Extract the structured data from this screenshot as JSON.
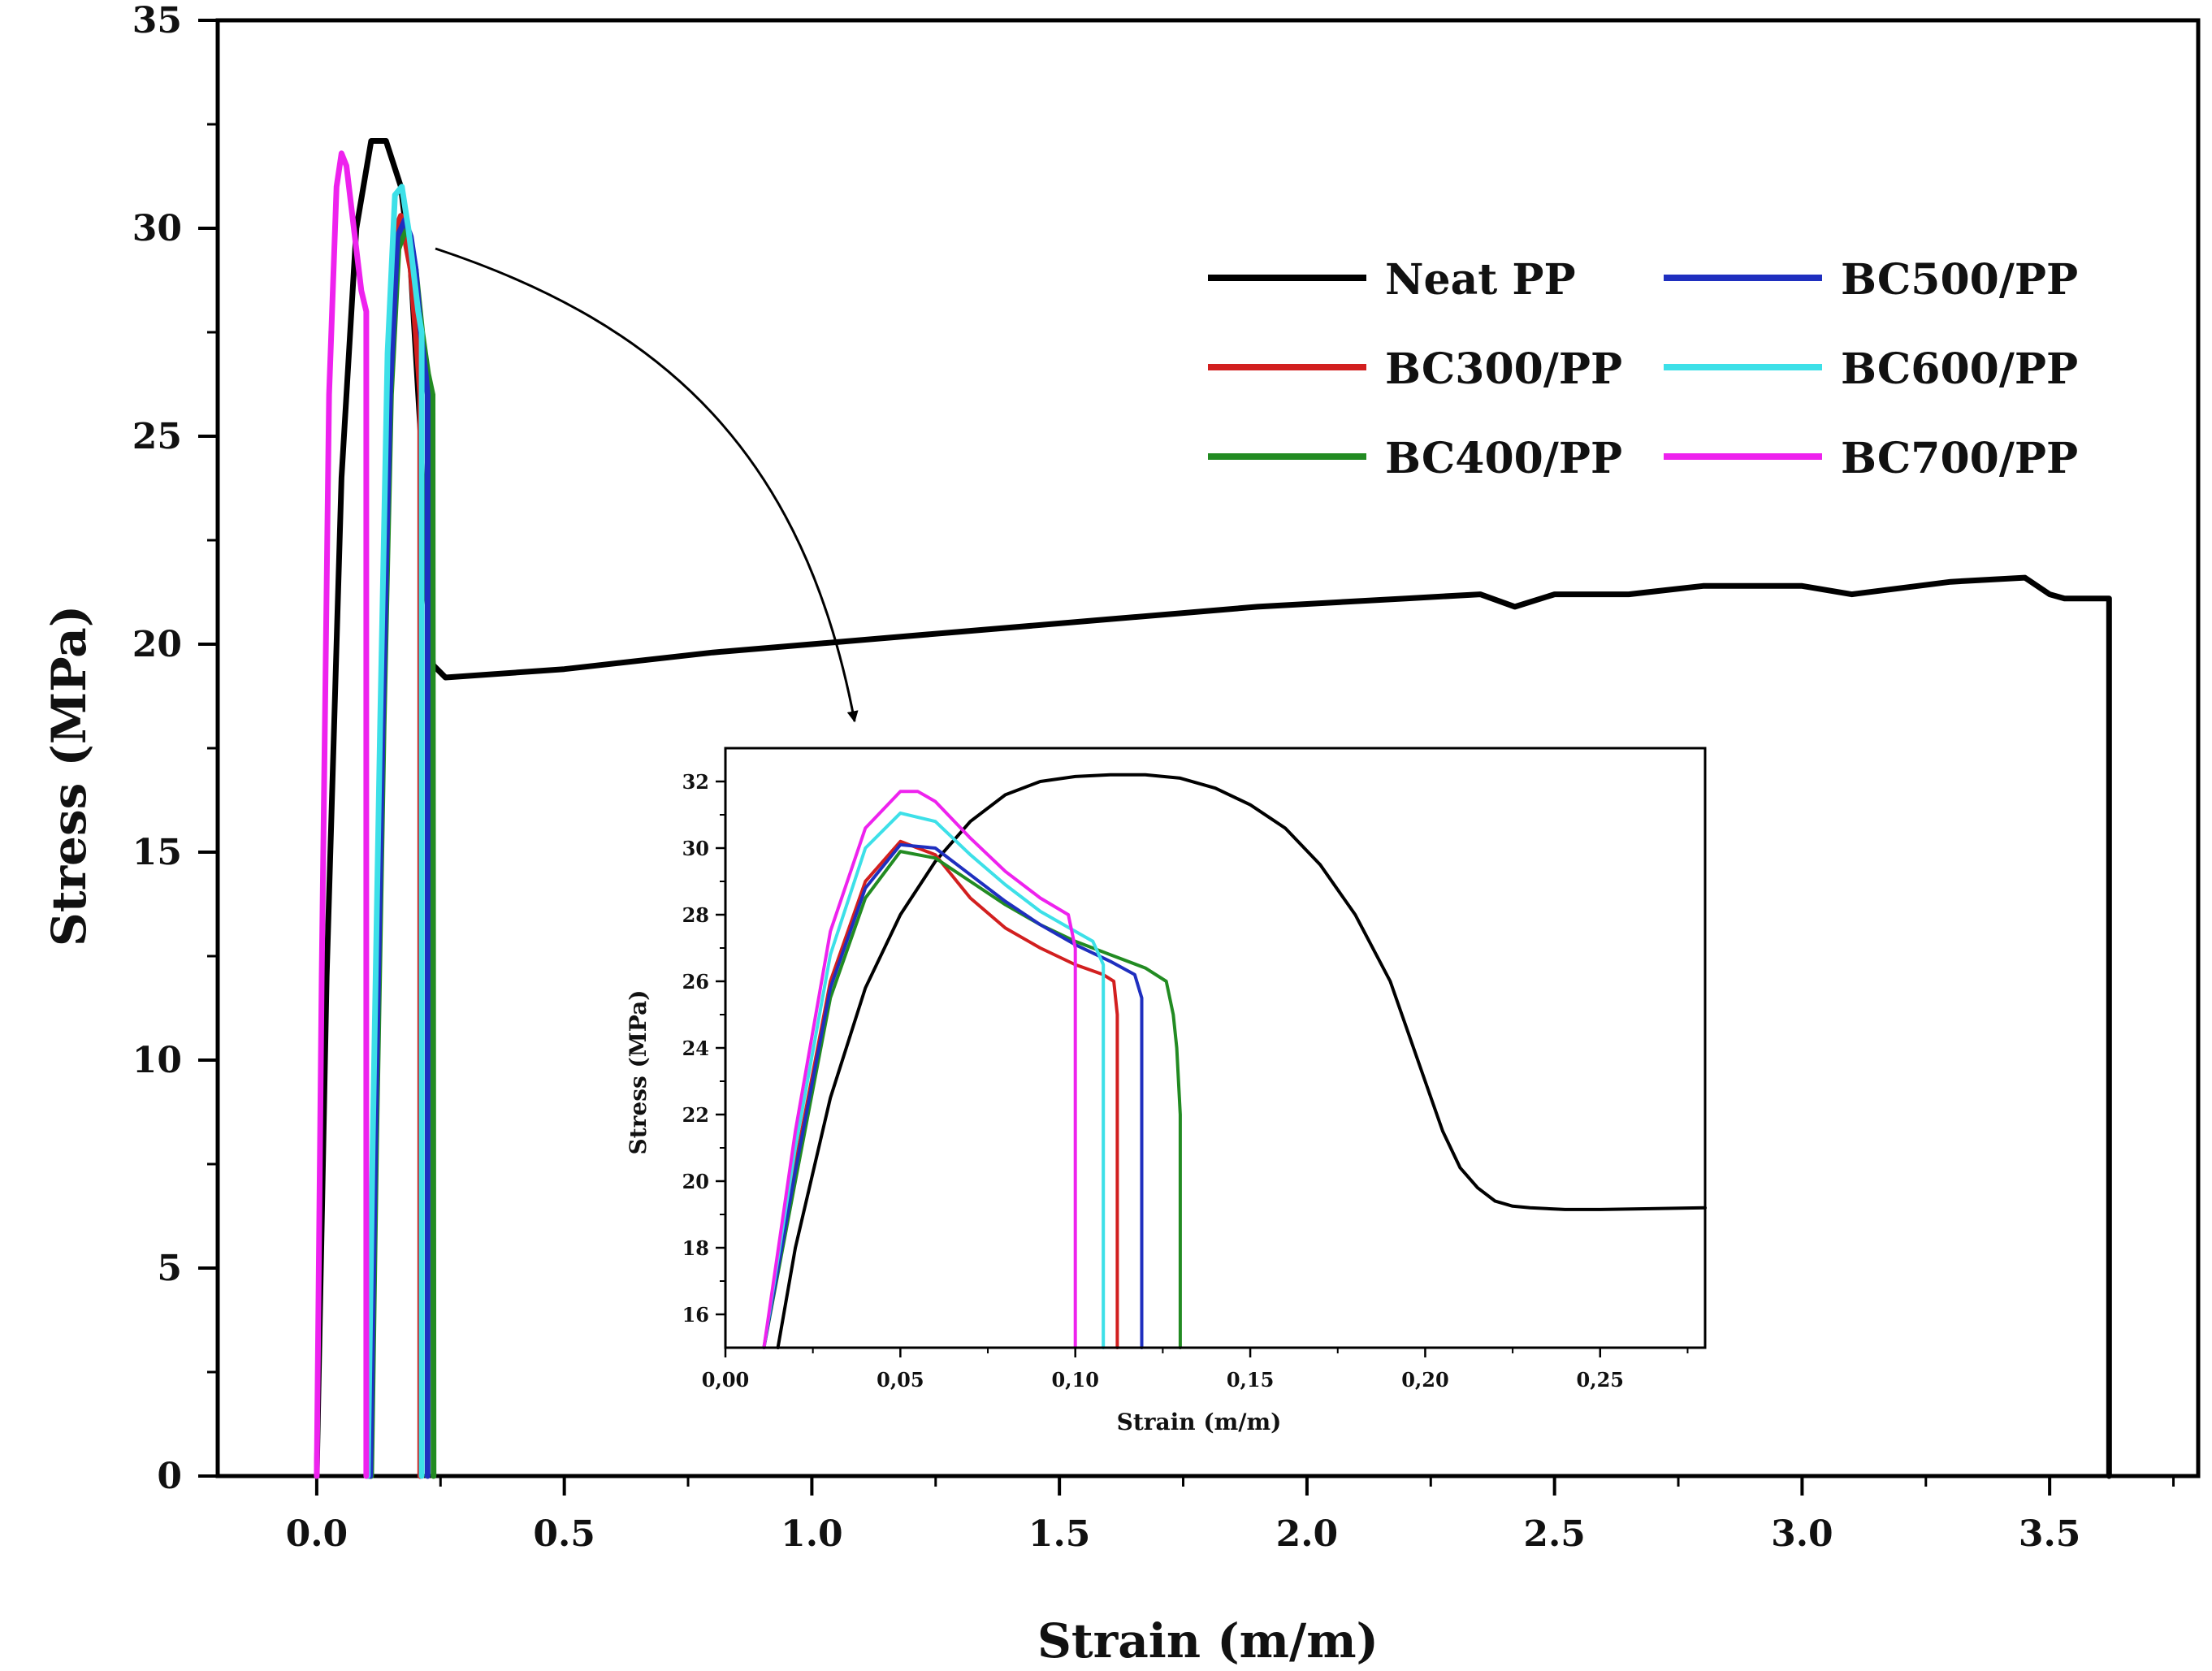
{
  "chart_data": [
    {
      "id": "main",
      "type": "line",
      "title": "",
      "xlabel": "Strain (m/m)",
      "ylabel": "Stress (MPa)",
      "xlim": [
        -0.2,
        3.8
      ],
      "ylim": [
        0,
        35
      ],
      "xticks": [
        "0.0",
        "0.5",
        "1.0",
        "1.5",
        "2.0",
        "2.5",
        "3.0",
        "3.5"
      ],
      "xtick_values": [
        0,
        0.5,
        1.0,
        1.5,
        2.0,
        2.5,
        3.0,
        3.5
      ],
      "yticks": [
        "0",
        "5",
        "10",
        "15",
        "20",
        "25",
        "30",
        "35"
      ],
      "ytick_values": [
        0,
        5,
        10,
        15,
        20,
        25,
        30,
        35
      ],
      "legend_position": "top-right",
      "series": [
        {
          "name": "Neat PP",
          "color": "#000000",
          "x": [
            0,
            0.02,
            0.05,
            0.08,
            0.11,
            0.14,
            0.17,
            0.19,
            0.21,
            0.22,
            0.235,
            0.26,
            0.5,
            0.8,
            1.0,
            1.3,
            1.6,
            1.9,
            2.2,
            2.35,
            2.42,
            2.5,
            2.65,
            2.8,
            3.0,
            3.1,
            3.3,
            3.45,
            3.5,
            3.53,
            3.6,
            3.62,
            3.62
          ],
          "y": [
            0,
            12,
            24,
            30,
            32.1,
            32.1,
            31,
            29,
            25,
            21.5,
            19.5,
            19.2,
            19.4,
            19.8,
            20.0,
            20.3,
            20.6,
            20.9,
            21.1,
            21.2,
            20.9,
            21.2,
            21.2,
            21.4,
            21.4,
            21.2,
            21.5,
            21.6,
            21.2,
            21.1,
            21.1,
            21.1,
            0
          ]
        },
        {
          "name": "BC300/PP",
          "color": "#d21f1f",
          "x": [
            0.105,
            0.115,
            0.13,
            0.145,
            0.16,
            0.17,
            0.182,
            0.19,
            0.2,
            0.209,
            0.209
          ],
          "y": [
            0,
            8,
            18,
            26,
            30,
            30.3,
            29.5,
            29,
            27.5,
            26,
            0
          ]
        },
        {
          "name": "BC400/PP",
          "color": "#228b22",
          "x": [
            0.11,
            0.12,
            0.135,
            0.15,
            0.165,
            0.18,
            0.19,
            0.2,
            0.213,
            0.225,
            0.234,
            0.236,
            0.236
          ],
          "y": [
            0,
            8,
            18,
            26,
            29.5,
            30,
            29.7,
            29,
            27.5,
            26.5,
            26,
            0,
            0
          ]
        },
        {
          "name": "BC500/PP",
          "color": "#1f2fbf",
          "x": [
            0.108,
            0.118,
            0.133,
            0.148,
            0.163,
            0.178,
            0.19,
            0.2,
            0.21,
            0.22,
            0.224,
            0.224
          ],
          "y": [
            0,
            8,
            18,
            26,
            29.8,
            30.2,
            29.8,
            29,
            27.5,
            26.5,
            26,
            0
          ]
        },
        {
          "name": "BC600/PP",
          "color": "#3de0e8",
          "x": [
            0.103,
            0.113,
            0.128,
            0.143,
            0.158,
            0.172,
            0.185,
            0.195,
            0.205,
            0.212,
            0.212
          ],
          "y": [
            0,
            8,
            18,
            27,
            30.8,
            31,
            30,
            29,
            28,
            27.5,
            0
          ]
        },
        {
          "name": "BC700/PP",
          "color": "#ee22ee",
          "x": [
            0,
            0.01,
            0.025,
            0.04,
            0.05,
            0.06,
            0.075,
            0.09,
            0.1,
            0.1
          ],
          "y": [
            0,
            12,
            26,
            31,
            31.8,
            31.5,
            30,
            28.5,
            28,
            0
          ]
        }
      ]
    },
    {
      "id": "inset",
      "type": "line",
      "title": "",
      "xlabel": "Strain (m/m)",
      "ylabel": "Stress (MPa)",
      "xlim": [
        0,
        0.28
      ],
      "ylim": [
        15,
        33
      ],
      "xticks": [
        "0,00",
        "0,05",
        "0,10",
        "0,15",
        "0,20",
        "0,25"
      ],
      "xtick_values": [
        0,
        0.05,
        0.1,
        0.15,
        0.2,
        0.25
      ],
      "yticks": [
        "16",
        "18",
        "20",
        "22",
        "24",
        "26",
        "28",
        "30",
        "32"
      ],
      "ytick_values": [
        16,
        18,
        20,
        22,
        24,
        26,
        28,
        30,
        32
      ],
      "series": [
        {
          "name": "Neat PP",
          "color": "#000000",
          "x": [
            0.015,
            0.02,
            0.03,
            0.04,
            0.05,
            0.06,
            0.07,
            0.08,
            0.09,
            0.1,
            0.11,
            0.12,
            0.13,
            0.14,
            0.15,
            0.16,
            0.17,
            0.18,
            0.19,
            0.2,
            0.205,
            0.21,
            0.215,
            0.22,
            0.225,
            0.23,
            0.24,
            0.25,
            0.28
          ],
          "y": [
            15,
            18,
            22.5,
            25.8,
            28,
            29.6,
            30.8,
            31.6,
            32,
            32.15,
            32.2,
            32.2,
            32.1,
            31.8,
            31.3,
            30.6,
            29.5,
            28,
            26,
            23,
            21.5,
            20.4,
            19.8,
            19.4,
            19.25,
            19.2,
            19.15,
            19.15,
            19.2
          ]
        },
        {
          "name": "BC300/PP",
          "color": "#d21f1f",
          "x": [
            0.011,
            0.02,
            0.03,
            0.04,
            0.05,
            0.06,
            0.07,
            0.08,
            0.09,
            0.1,
            0.108,
            0.111,
            0.112,
            0.112
          ],
          "y": [
            15,
            20.5,
            26,
            29,
            30.2,
            29.8,
            28.5,
            27.6,
            27,
            26.5,
            26.2,
            26,
            25,
            15
          ]
        },
        {
          "name": "BC400/PP",
          "color": "#228b22",
          "x": [
            0.011,
            0.02,
            0.03,
            0.04,
            0.05,
            0.06,
            0.07,
            0.08,
            0.09,
            0.1,
            0.11,
            0.12,
            0.126,
            0.128,
            0.129,
            0.13,
            0.13
          ],
          "y": [
            15,
            20,
            25.5,
            28.5,
            29.9,
            29.7,
            29,
            28.3,
            27.7,
            27.2,
            26.8,
            26.4,
            26,
            25,
            24,
            22,
            15
          ]
        },
        {
          "name": "BC500/PP",
          "color": "#1f2fbf",
          "x": [
            0.011,
            0.02,
            0.03,
            0.04,
            0.05,
            0.06,
            0.07,
            0.08,
            0.09,
            0.1,
            0.11,
            0.117,
            0.119,
            0.119
          ],
          "y": [
            15,
            20.3,
            25.8,
            28.8,
            30.1,
            30,
            29.2,
            28.4,
            27.7,
            27.1,
            26.6,
            26.2,
            25.5,
            15
          ]
        },
        {
          "name": "BC600/PP",
          "color": "#3de0e8",
          "x": [
            0.011,
            0.02,
            0.03,
            0.04,
            0.05,
            0.06,
            0.07,
            0.08,
            0.09,
            0.1,
            0.105,
            0.108,
            0.108
          ],
          "y": [
            15,
            21,
            26.8,
            30,
            31.05,
            30.8,
            29.8,
            28.9,
            28.1,
            27.5,
            27.2,
            26.5,
            15
          ]
        },
        {
          "name": "BC700/PP",
          "color": "#ee22ee",
          "x": [
            0.011,
            0.02,
            0.03,
            0.04,
            0.05,
            0.055,
            0.06,
            0.07,
            0.08,
            0.09,
            0.098,
            0.1,
            0.1
          ],
          "y": [
            15,
            21.5,
            27.5,
            30.6,
            31.7,
            31.7,
            31.4,
            30.3,
            29.3,
            28.5,
            28,
            27,
            15
          ]
        }
      ]
    }
  ]
}
